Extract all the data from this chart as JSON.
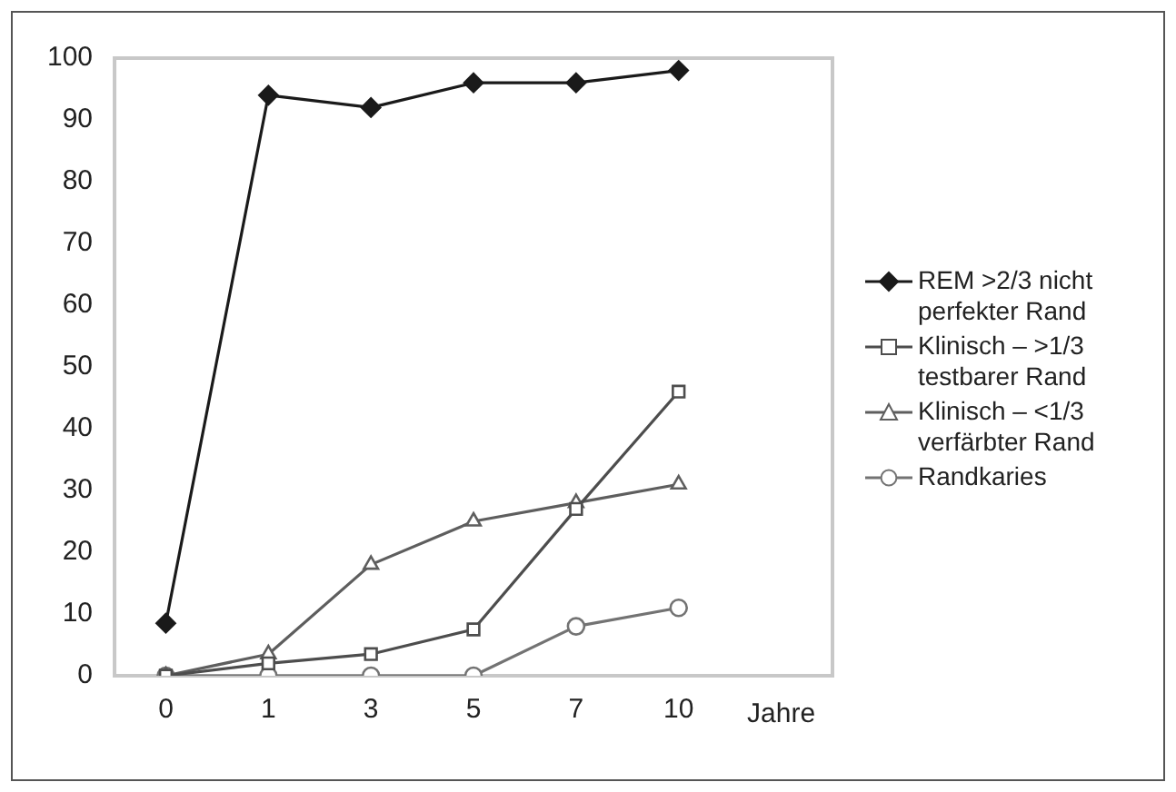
{
  "chart_data": {
    "type": "line",
    "xlabel": "Jahre",
    "categories": [
      "0",
      "1",
      "3",
      "5",
      "7",
      "10"
    ],
    "ylim": [
      0,
      100
    ],
    "yticks": [
      0,
      10,
      20,
      30,
      40,
      50,
      60,
      70,
      80,
      90,
      100
    ],
    "grid": false,
    "legend": "right",
    "line_style": "solid",
    "series": [
      {
        "name": "REM >2/3 nicht perfekter Rand",
        "color": "#1a1a1a",
        "marker": "diamond",
        "values": [
          8.5,
          94,
          92,
          96,
          96,
          98
        ]
      },
      {
        "name": "Klinisch – >1/3 testbarer Rand",
        "color": "#4d4d4d",
        "marker": "square",
        "values": [
          0,
          2,
          3.5,
          7.5,
          27,
          46
        ]
      },
      {
        "name": "Klinisch – <1/3 verfärbter Rand",
        "color": "#5e5e5e",
        "marker": "triangle",
        "values": [
          0,
          3.5,
          18,
          25,
          28,
          31
        ]
      },
      {
        "name": "Randkaries",
        "color": "#737373",
        "marker": "circle",
        "values": [
          0,
          0,
          0,
          0,
          8,
          11
        ]
      }
    ]
  }
}
